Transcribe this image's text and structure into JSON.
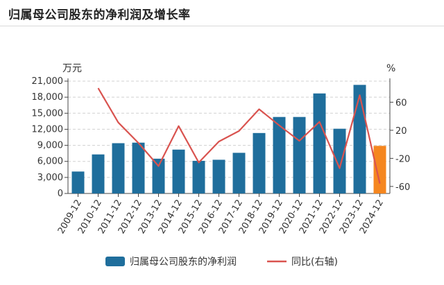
{
  "header": {
    "title": "归属母公司股东的净利润及增长率"
  },
  "chart_data": {
    "type": "bar",
    "title": "归属母公司股东的净利润及增长率",
    "categories": [
      "2009-12",
      "2010-12",
      "2011-12",
      "2012-12",
      "2013-12",
      "2014-12",
      "2015-12",
      "2016-12",
      "2017-12",
      "2018-12",
      "2019-12",
      "2020-12",
      "2021-12",
      "2022-12",
      "2023-12",
      "2024-12"
    ],
    "left_axis": {
      "unit": "万元",
      "ylim": [
        0,
        21000
      ],
      "ticks": [
        0,
        3000,
        6000,
        9000,
        12000,
        15000,
        18000,
        21000
      ],
      "tick_labels": [
        "0",
        "3,000",
        "6,000",
        "9,000",
        "12,000",
        "15,000",
        "18,000",
        "21,000"
      ]
    },
    "right_axis": {
      "unit": "%",
      "ylim": [
        -70,
        90
      ],
      "ticks": [
        -60,
        -20,
        20,
        60
      ],
      "tick_labels": [
        "-60",
        "-20",
        "20",
        "60"
      ]
    },
    "grid": true,
    "legend_position": "bottom",
    "series": [
      {
        "name": "归属母公司股东的净利润",
        "type": "bar",
        "axis": "left",
        "color": "#1f6e9c",
        "highlight_color": "#f5861f",
        "highlight_index": 15,
        "values": [
          4100,
          7300,
          9400,
          9500,
          6500,
          8200,
          6100,
          6300,
          7600,
          11300,
          14300,
          14300,
          18700,
          12100,
          20300,
          8900
        ]
      },
      {
        "name": "同比(右轴)",
        "type": "line",
        "axis": "right",
        "color": "#d9534f",
        "values": [
          null,
          80,
          31,
          2,
          -31,
          26,
          -26,
          4,
          19,
          50,
          27,
          5,
          32,
          -34,
          70,
          -56
        ]
      }
    ]
  }
}
